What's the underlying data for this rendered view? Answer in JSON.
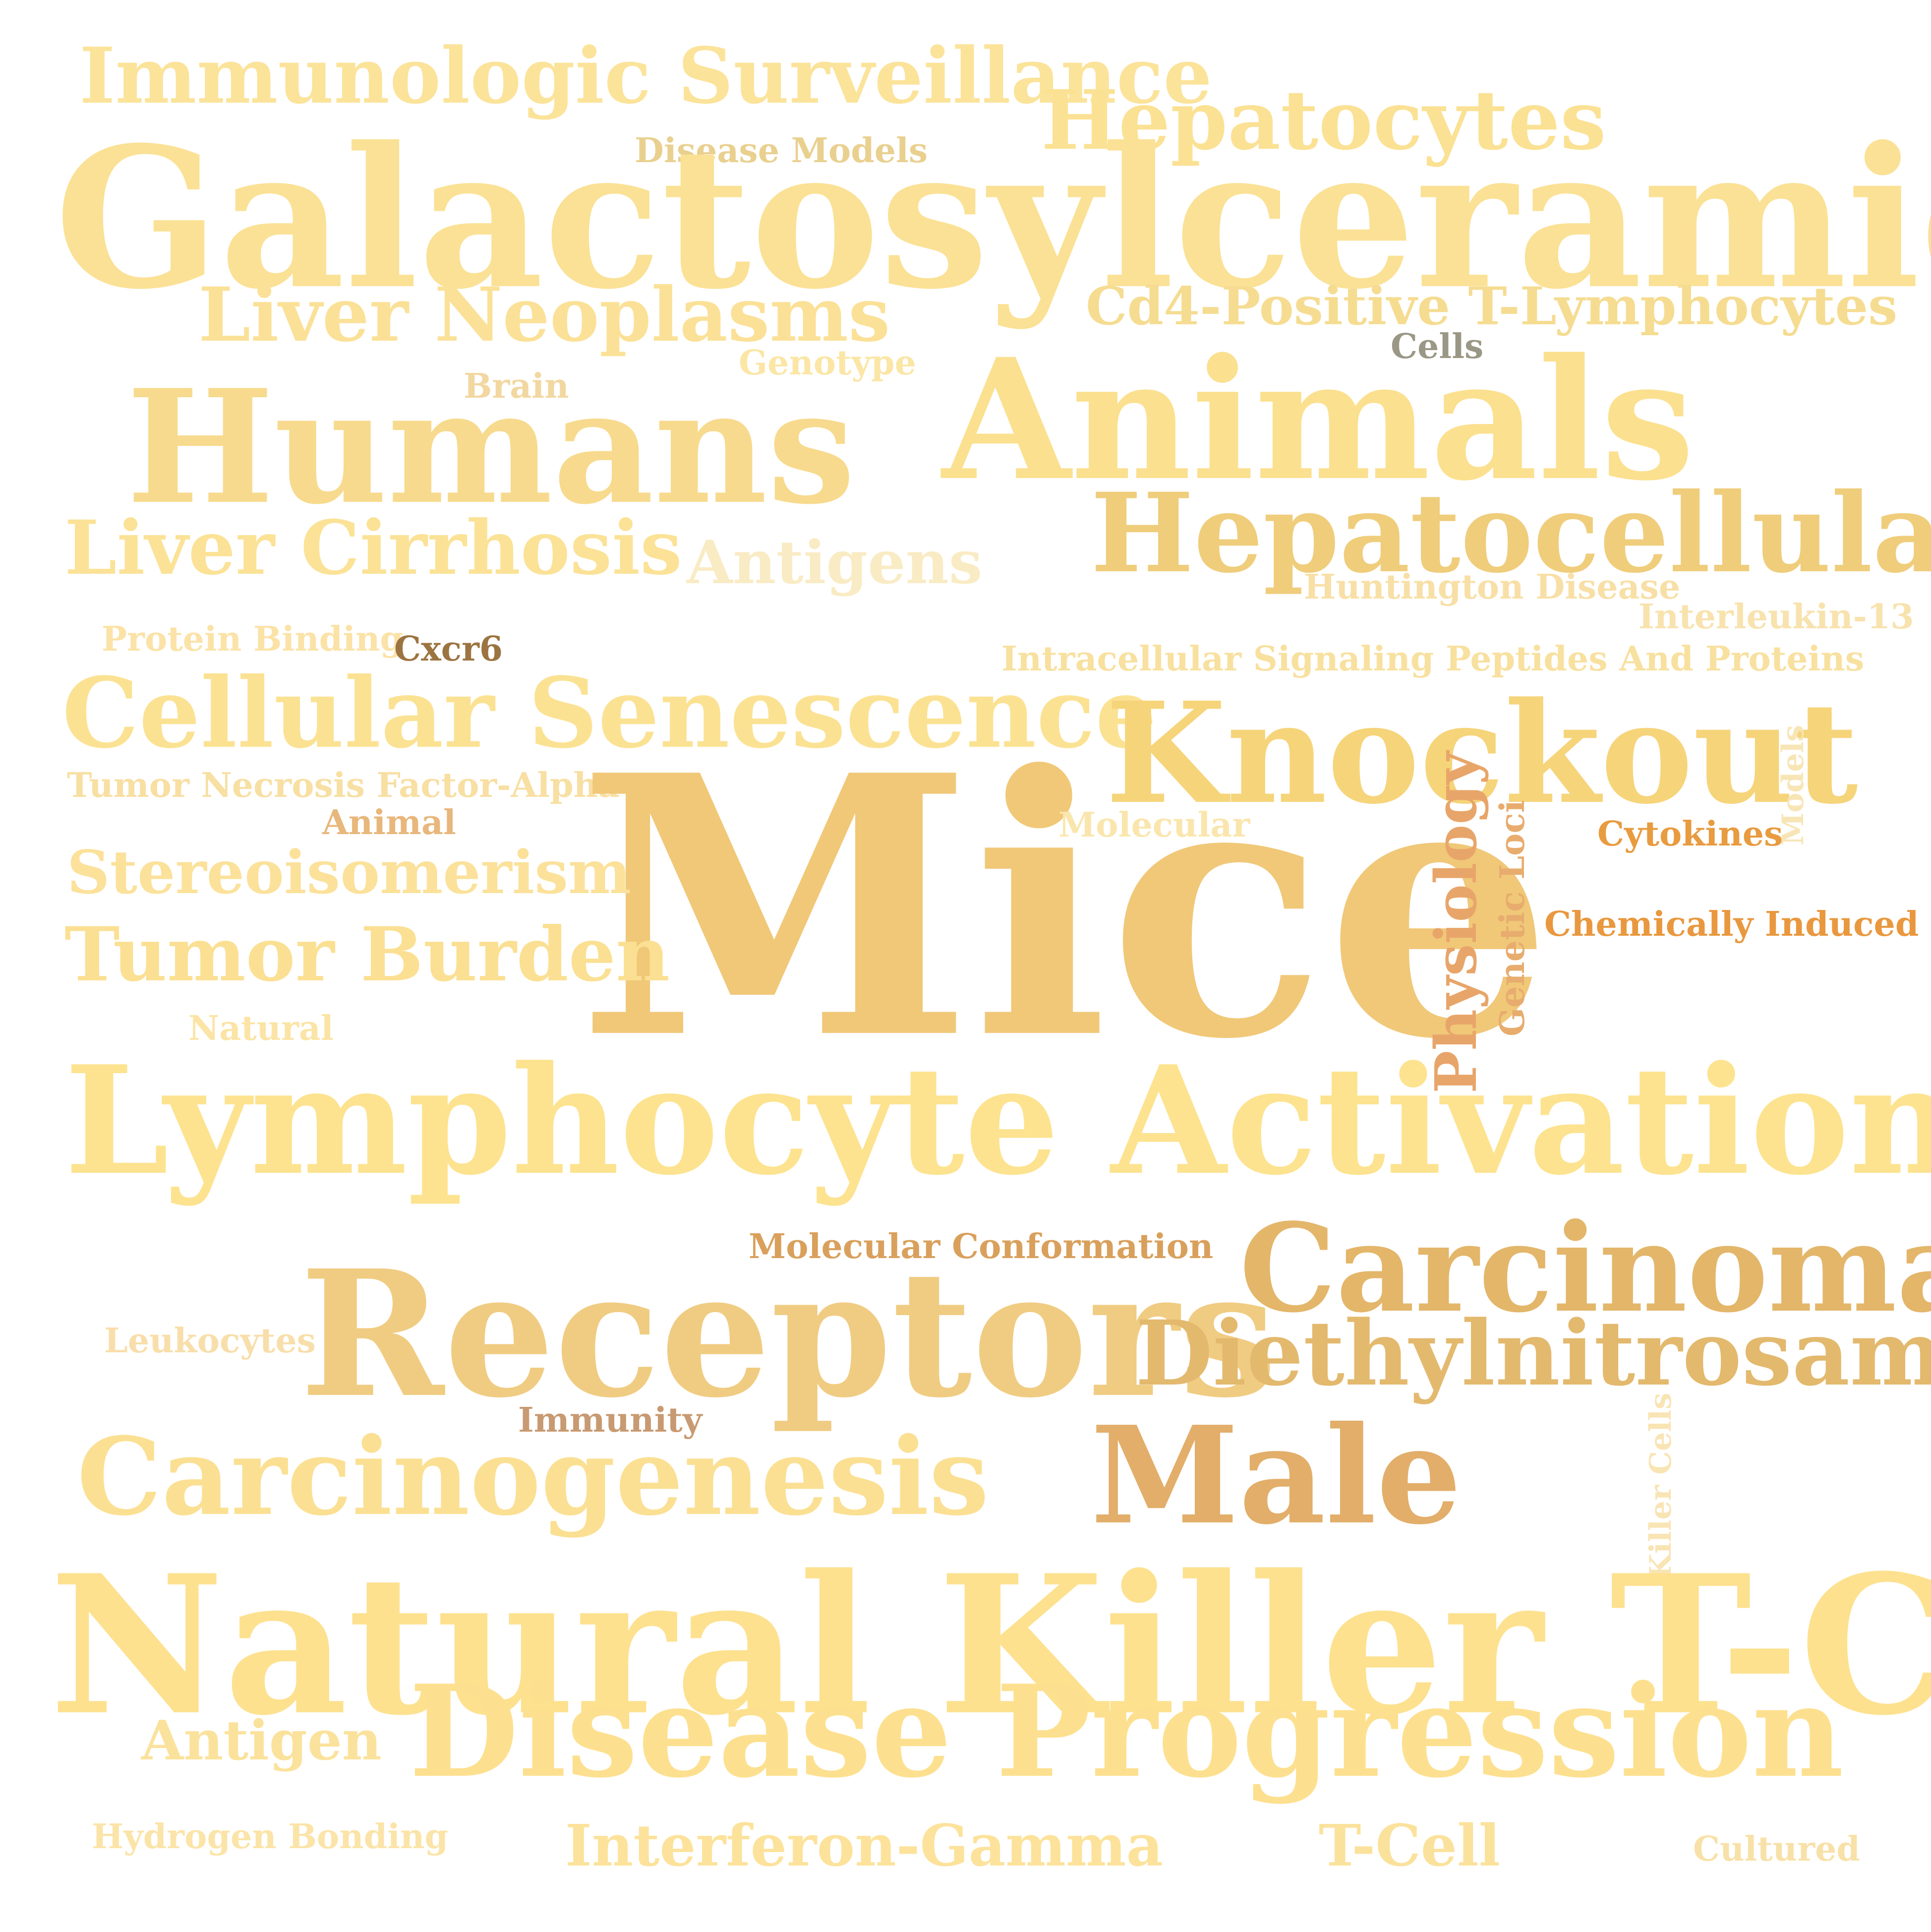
{
  "words": [
    {
      "text": "Immunologic Surveillance",
      "color": "#fbe39a",
      "vertical": false
    },
    {
      "text": "Hepatocytes",
      "color": "#fbe193",
      "vertical": false
    },
    {
      "text": "Disease Models",
      "color": "#e9d08f",
      "vertical": false
    },
    {
      "text": "Galactosylceramides",
      "color": "#fbe195",
      "vertical": false
    },
    {
      "text": "Liver Neoplasms",
      "color": "#fbe197",
      "vertical": false
    },
    {
      "text": "Cd4-Positive T-Lymphocytes",
      "color": "#f5dc91",
      "vertical": false
    },
    {
      "text": "Genotype",
      "color": "#fbe6a6",
      "vertical": false
    },
    {
      "text": "Cells",
      "color": "#9a9786",
      "vertical": false
    },
    {
      "text": "Brain",
      "color": "#f2d7a0",
      "vertical": false
    },
    {
      "text": "Humans",
      "color": "#f7da8d",
      "vertical": false
    },
    {
      "text": "Animals",
      "color": "#fbe08f",
      "vertical": false
    },
    {
      "text": "Liver Cirrhosis",
      "color": "#fbe296",
      "vertical": false
    },
    {
      "text": "Antigens",
      "color": "#f9ebc4",
      "vertical": false
    },
    {
      "text": "Hepatocellular",
      "color": "#efcd7b",
      "vertical": false
    },
    {
      "text": "Huntington Disease",
      "color": "#f8dfa6",
      "vertical": false
    },
    {
      "text": "Interleukin-13",
      "color": "#f8e2ad",
      "vertical": false
    },
    {
      "text": "Protein Binding",
      "color": "#fbe2a6",
      "vertical": false
    },
    {
      "text": "Cxcr6",
      "color": "#9c7441",
      "vertical": false
    },
    {
      "text": "Intracellular Signaling Peptides And Proteins",
      "color": "#f8e09f",
      "vertical": false
    },
    {
      "text": "Cellular Senescence",
      "color": "#fbe293",
      "vertical": false
    },
    {
      "text": "Knockout",
      "color": "#f6d47a",
      "vertical": false
    },
    {
      "text": "Tumor Necrosis Factor-Alpha",
      "color": "#f8dfa2",
      "vertical": false
    },
    {
      "text": "Mice",
      "color": "#f0c878",
      "vertical": false
    },
    {
      "text": "Animal",
      "color": "#e8b77c",
      "vertical": false
    },
    {
      "text": "Molecular",
      "color": "#fae6ad",
      "vertical": false
    },
    {
      "text": "Models",
      "color": "#f8e5b6",
      "vertical": true
    },
    {
      "text": "Cytokines",
      "color": "#e89b3f",
      "vertical": false
    },
    {
      "text": "Stereoisomerism",
      "color": "#fbe19a",
      "vertical": false
    },
    {
      "text": "Physiology",
      "color": "#e8a56a",
      "vertical": true
    },
    {
      "text": "Genetic Loci",
      "color": "#e7ac6e",
      "vertical": true
    },
    {
      "text": "Chemically Induced",
      "color": "#e9983f",
      "vertical": false
    },
    {
      "text": "Tumor Burden",
      "color": "#fbe093",
      "vertical": false
    },
    {
      "text": "Natural",
      "color": "#fbe4a5",
      "vertical": false
    },
    {
      "text": "Lymphocyte Activation",
      "color": "#fde38f",
      "vertical": false
    },
    {
      "text": "Molecular Conformation",
      "color": "#d9a05c",
      "vertical": false
    },
    {
      "text": "Carcinoma",
      "color": "#e3b66a",
      "vertical": false
    },
    {
      "text": "Leukocytes",
      "color": "#f8deaa",
      "vertical": false
    },
    {
      "text": "Receptors",
      "color": "#f0cc82",
      "vertical": false
    },
    {
      "text": "Diethylnitrosamine",
      "color": "#e3b96e",
      "vertical": false
    },
    {
      "text": "Immunity",
      "color": "#c89a72",
      "vertical": false
    },
    {
      "text": "Carcinogenesis",
      "color": "#fbe093",
      "vertical": false
    },
    {
      "text": "Male",
      "color": "#e2ae6a",
      "vertical": false
    },
    {
      "text": "Killer Cells",
      "color": "#f9e4b4",
      "vertical": true
    },
    {
      "text": "Natural Killer T-Cells",
      "color": "#fde18f",
      "vertical": false
    },
    {
      "text": "Antigen",
      "color": "#fbe29c",
      "vertical": false
    },
    {
      "text": "Disease Progression",
      "color": "#fde08f",
      "vertical": false
    },
    {
      "text": "Hydrogen Bonding",
      "color": "#fbe4a8",
      "vertical": false
    },
    {
      "text": "Interferon-Gamma",
      "color": "#fce29b",
      "vertical": false
    },
    {
      "text": "T-Cell",
      "color": "#fbe29c",
      "vertical": false
    },
    {
      "text": "Cultured",
      "color": "#f8e1a8",
      "vertical": false
    }
  ]
}
